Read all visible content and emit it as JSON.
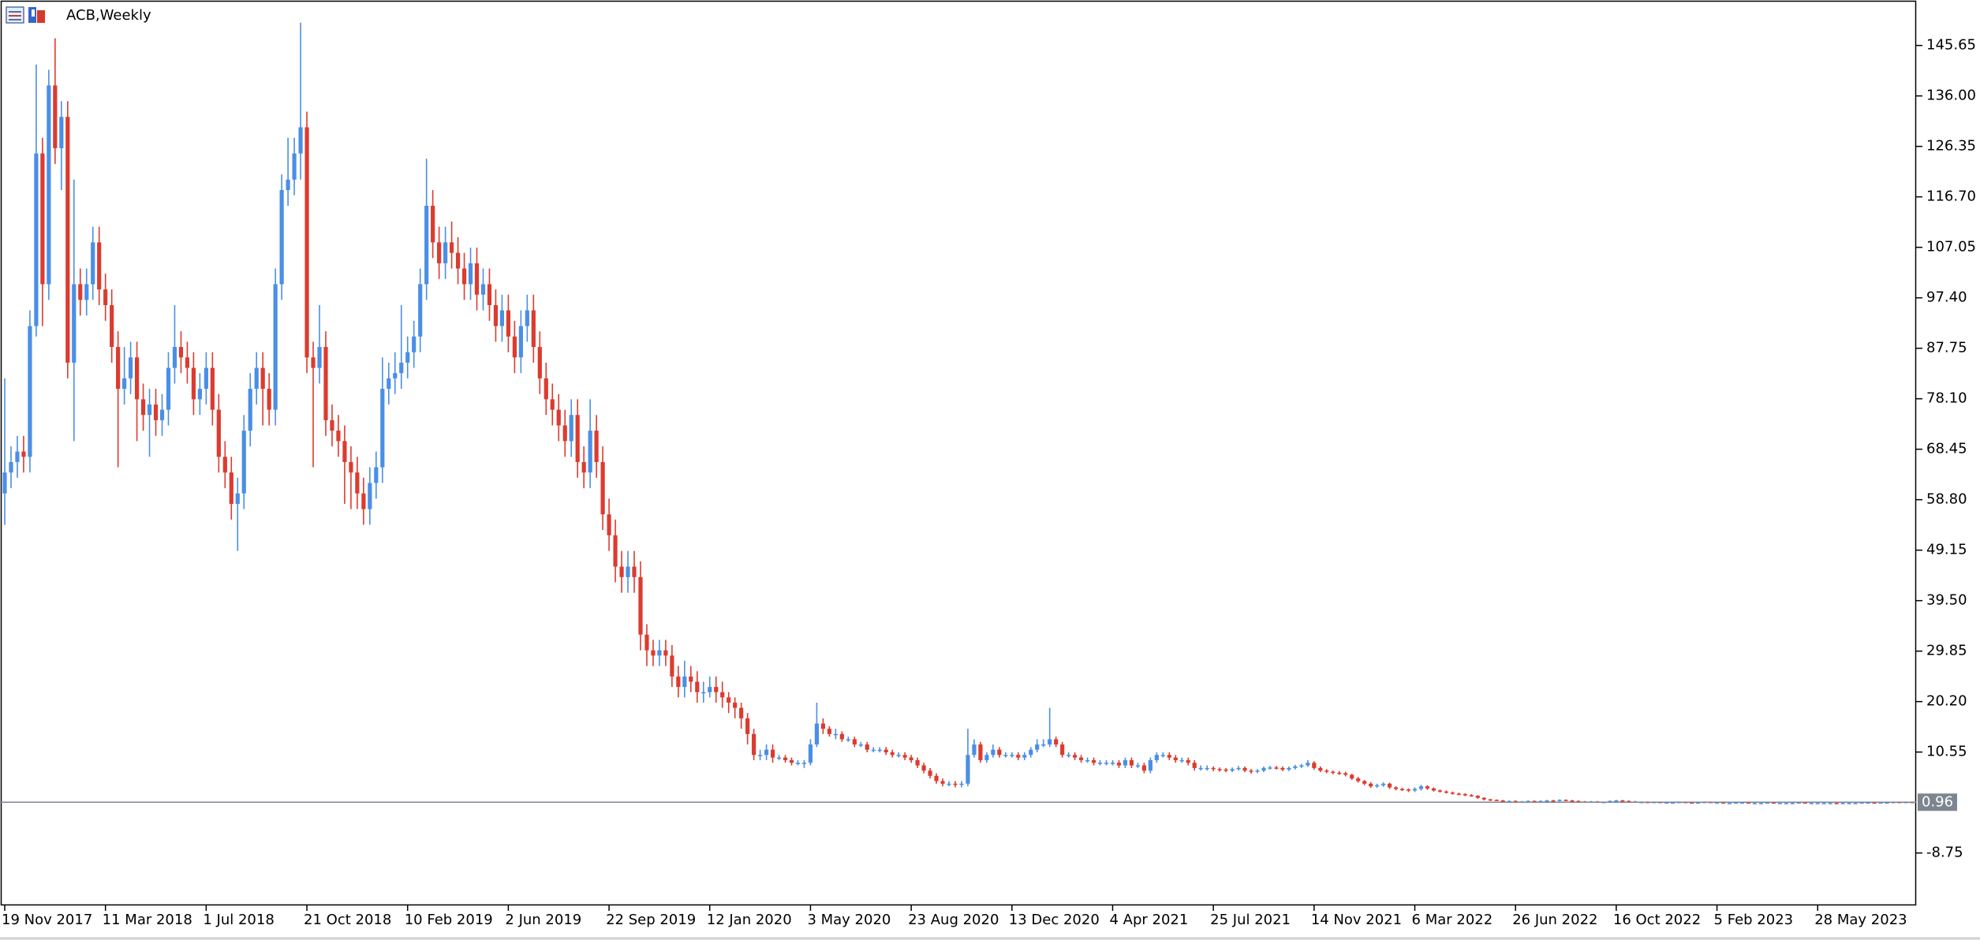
{
  "chart_data": {
    "type": "candlestick",
    "title": "ACB,Weekly",
    "up_color": "#4a8fe6",
    "down_color": "#dc3b2f",
    "grid": false,
    "last_price": 0.96,
    "last_price_color": "#7d8690",
    "ylim": [
      -18.6,
      154.34
    ],
    "yticks": [
      145.65,
      {
        "value": 136,
        "label": "136.00"
      },
      126.35,
      {
        "value": 116.7,
        "label": "116.70"
      },
      107.05,
      {
        "value": 97.4,
        "label": "97.40"
      },
      87.75,
      {
        "value": 78.1,
        "label": "78.10"
      },
      68.45,
      {
        "value": 58.8,
        "label": "58.80"
      },
      49.15,
      {
        "value": 39.5,
        "label": "39.50"
      },
      29.85,
      {
        "value": 20.2,
        "label": "20.20"
      },
      10.55,
      -8.75
    ],
    "categories": [
      "19 Nov 2017",
      null,
      null,
      null,
      null,
      null,
      null,
      null,
      null,
      null,
      null,
      null,
      null,
      null,
      null,
      null,
      "11 Mar 2018",
      null,
      null,
      null,
      null,
      null,
      null,
      null,
      null,
      null,
      null,
      null,
      null,
      null,
      null,
      null,
      "1 Jul 2018",
      null,
      null,
      null,
      null,
      null,
      null,
      null,
      null,
      null,
      null,
      null,
      null,
      null,
      null,
      null,
      "21 Oct 2018",
      null,
      null,
      null,
      null,
      null,
      null,
      null,
      null,
      null,
      null,
      null,
      null,
      null,
      null,
      null,
      "10 Feb 2019",
      null,
      null,
      null,
      null,
      null,
      null,
      null,
      null,
      null,
      null,
      null,
      null,
      null,
      null,
      null,
      "2 Jun 2019",
      null,
      null,
      null,
      null,
      null,
      null,
      null,
      null,
      null,
      null,
      null,
      null,
      null,
      null,
      null,
      "22 Sep 2019",
      null,
      null,
      null,
      null,
      null,
      null,
      null,
      null,
      null,
      null,
      null,
      null,
      null,
      null,
      null,
      "12 Jan 2020",
      null,
      null,
      null,
      null,
      null,
      null,
      null,
      null,
      null,
      null,
      null,
      null,
      null,
      null,
      null,
      "3 May 2020",
      null,
      null,
      null,
      null,
      null,
      null,
      null,
      null,
      null,
      null,
      null,
      null,
      null,
      null,
      null,
      "23 Aug 2020",
      null,
      null,
      null,
      null,
      null,
      null,
      null,
      null,
      null,
      null,
      null,
      null,
      null,
      null,
      null,
      "13 Dec 2020",
      null,
      null,
      null,
      null,
      null,
      null,
      null,
      null,
      null,
      null,
      null,
      null,
      null,
      null,
      null,
      "4 Apr 2021",
      null,
      null,
      null,
      null,
      null,
      null,
      null,
      null,
      null,
      null,
      null,
      null,
      null,
      null,
      null,
      "25 Jul 2021",
      null,
      null,
      null,
      null,
      null,
      null,
      null,
      null,
      null,
      null,
      null,
      null,
      null,
      null,
      null,
      "14 Nov 2021",
      null,
      null,
      null,
      null,
      null,
      null,
      null,
      null,
      null,
      null,
      null,
      null,
      null,
      null,
      null,
      "6 Mar 2022",
      null,
      null,
      null,
      null,
      null,
      null,
      null,
      null,
      null,
      null,
      null,
      null,
      null,
      null,
      null,
      "26 Jun 2022",
      null,
      null,
      null,
      null,
      null,
      null,
      null,
      null,
      null,
      null,
      null,
      null,
      null,
      null,
      null,
      "16 Oct 2022",
      null,
      null,
      null,
      null,
      null,
      null,
      null,
      null,
      null,
      null,
      null,
      null,
      null,
      null,
      null,
      "5 Feb 2023",
      null,
      null,
      null,
      null,
      null,
      null,
      null,
      null,
      null,
      null,
      null,
      null,
      null,
      null,
      null,
      "28 May 2023",
      null,
      null,
      null,
      null,
      null,
      null,
      null,
      null,
      null,
      null,
      null,
      null,
      null,
      null,
      null
    ],
    "open": [
      60,
      64,
      66,
      68,
      67,
      92,
      125,
      100,
      138,
      126,
      132,
      85,
      100,
      97,
      100,
      108,
      99,
      96,
      88,
      80,
      82,
      86,
      78,
      75,
      77,
      74,
      76,
      84,
      88,
      86,
      84,
      78,
      80,
      84,
      76,
      67,
      64,
      58,
      60,
      72,
      80,
      84,
      80,
      76,
      100,
      118,
      120,
      125,
      130,
      86,
      84,
      88,
      74,
      72,
      70,
      66,
      64,
      60,
      57,
      62,
      65,
      80,
      82,
      83,
      85,
      87,
      90,
      100,
      115,
      108,
      104,
      108,
      106,
      103,
      100,
      104,
      98,
      100,
      96,
      92,
      95,
      90,
      86,
      92,
      95,
      88,
      82,
      78,
      76,
      73,
      70,
      75,
      66,
      64,
      72,
      66,
      56,
      52,
      46,
      44,
      46,
      44,
      33,
      30,
      29,
      30,
      29,
      25,
      23,
      25,
      24,
      22,
      22,
      23,
      22,
      21,
      20,
      19,
      17,
      14,
      10,
      10,
      11,
      9.5,
      9.5,
      9,
      8.5,
      8.5,
      8.5,
      12,
      16,
      15,
      14,
      14,
      13,
      13,
      12,
      12,
      11,
      11,
      11,
      10.5,
      10,
      10,
      9.5,
      9,
      8,
      7,
      6,
      5,
      4.5,
      4.5,
      4.3,
      4.5,
      10,
      12,
      9,
      10,
      11,
      10,
      10,
      10,
      9.5,
      10,
      11,
      12,
      12,
      13,
      12,
      10,
      10,
      9.5,
      9,
      9,
      8.5,
      8.5,
      8.5,
      8.5,
      8,
      9,
      8,
      8,
      7,
      9,
      10,
      10,
      9.5,
      9,
      9,
      8.5,
      7.5,
      7.5,
      7.5,
      7.3,
      7.2,
      7,
      7.3,
      7.5,
      7,
      6.8,
      7,
      7.5,
      7.6,
      7.5,
      7.2,
      7.5,
      7.8,
      8,
      8.5,
      7.5,
      7,
      6.8,
      6.6,
      6.5,
      6.2,
      5.5,
      5,
      4.5,
      4,
      4.2,
      4.5,
      3.8,
      3.5,
      3.4,
      3.2,
      3.5,
      4,
      3.6,
      3.2,
      3,
      2.8,
      2.6,
      2.5,
      2.3,
      2.2,
      1.8,
      1.5,
      1.4,
      1.3,
      1.2,
      1.2,
      1.1,
      1.1,
      1.2,
      1.1,
      1.2,
      1.3,
      1.2,
      1.4,
      1.3,
      1.2,
      1.1,
      1.0,
      1.1,
      1.0,
      1.0,
      1.2,
      1.3,
      1.2,
      1.1,
      1.0,
      1.0,
      0.9,
      1.0,
      0.9,
      0.9,
      0.9,
      1.0,
      0.9,
      0.8,
      0.9,
      1.0,
      0.9,
      0.9,
      0.8,
      0.8,
      0.9,
      0.9,
      0.8,
      0.8,
      0.8,
      0.9,
      0.8,
      0.8,
      0.8,
      0.8,
      0.9,
      0.8,
      0.8,
      0.8,
      0.8,
      0.8,
      0.7,
      0.8,
      0.8,
      0.8,
      0.9,
      0.9,
      0.8,
      0.9,
      0.9,
      1.0,
      0.9,
      1.0
    ],
    "high": [
      82,
      69,
      71,
      71,
      95,
      142,
      128,
      141,
      147,
      135,
      135,
      120,
      103,
      103,
      111,
      111,
      102,
      99,
      91,
      88,
      89,
      89,
      81,
      80,
      80,
      79,
      87,
      96,
      91,
      89,
      87,
      83,
      87,
      87,
      79,
      70,
      67,
      63,
      75,
      83,
      87,
      87,
      83,
      103,
      121,
      128,
      128,
      150,
      133,
      89,
      96,
      91,
      77,
      75,
      73,
      69,
      67,
      63,
      65,
      68,
      86,
      85,
      87,
      96,
      90,
      93,
      103,
      124,
      118,
      111,
      111,
      112,
      109,
      106,
      107,
      107,
      103,
      103,
      99,
      98,
      98,
      93,
      95,
      98,
      98,
      91,
      85,
      81,
      79,
      76,
      78,
      78,
      69,
      78,
      75,
      69,
      59,
      55,
      49,
      49,
      49,
      47,
      35,
      32,
      32,
      32,
      31,
      27,
      28,
      27,
      26,
      24,
      25,
      25,
      24,
      22,
      21,
      20,
      18,
      15,
      11,
      12,
      12,
      10,
      10,
      9.5,
      9,
      9,
      13,
      20,
      17,
      15.5,
      15,
      14.5,
      13.5,
      13.5,
      12.5,
      12.5,
      11.5,
      11.5,
      11.5,
      11,
      10.5,
      10.5,
      10,
      9.5,
      8.5,
      7.5,
      6.5,
      5.5,
      5,
      5,
      5,
      15,
      13,
      12.5,
      10.5,
      12,
      11.5,
      10.5,
      10.5,
      10.5,
      10.5,
      11.5,
      13,
      13,
      19,
      13.5,
      12.5,
      10.5,
      10.5,
      10,
      9.5,
      9.5,
      9,
      9,
      9,
      9,
      9.5,
      9.5,
      8.5,
      8.5,
      9.5,
      10.5,
      10.5,
      10.5,
      10,
      9.5,
      9.5,
      9,
      8,
      8,
      7.8,
      7.6,
      7.5,
      7.6,
      7.9,
      7.8,
      7.3,
      7.3,
      7.8,
      7.9,
      7.9,
      7.8,
      7.8,
      8.1,
      8.3,
      9,
      8.8,
      7.8,
      7.3,
      7,
      6.9,
      6.8,
      6.4,
      5.8,
      5.2,
      4.8,
      4.5,
      4.8,
      4.7,
      4,
      3.7,
      3.6,
      3.8,
      4.3,
      4.2,
      3.8,
      3.4,
      3.2,
      3,
      2.8,
      2.7,
      2.5,
      2.3,
      1.9,
      1.6,
      1.5,
      1.4,
      1.3,
      1.3,
      1.2,
      1.3,
      1.3,
      1.3,
      1.4,
      1.4,
      1.5,
      1.5,
      1.4,
      1.3,
      1.2,
      1.2,
      1.2,
      1.1,
      1.3,
      1.4,
      1.4,
      1.3,
      1.2,
      1.1,
      1.1,
      1.1,
      1.1,
      1.0,
      1.0,
      1.1,
      1.1,
      1.0,
      1.0,
      1.1,
      1.1,
      1.0,
      1.0,
      0.9,
      1.0,
      1.0,
      1.0,
      0.9,
      0.9,
      1.0,
      1.0,
      0.9,
      0.9,
      0.9,
      1.0,
      1.0,
      0.9,
      0.9,
      0.9,
      0.9,
      0.9,
      0.9,
      0.9,
      0.9,
      1.0,
      1.0,
      1.0,
      1.0,
      1.0,
      1.1,
      1.1,
      1.1,
      1.1
    ],
    "low": [
      54,
      61,
      63,
      64,
      64,
      90,
      92,
      97,
      123,
      118,
      82,
      70,
      94,
      94,
      97,
      96,
      93,
      85,
      65,
      77,
      79,
      70,
      72,
      67,
      71,
      71,
      73,
      81,
      83,
      81,
      75,
      75,
      77,
      73,
      64,
      61,
      55,
      49,
      57,
      69,
      77,
      73,
      73,
      73,
      97,
      115,
      117,
      120,
      83,
      65,
      81,
      71,
      69,
      67,
      58,
      57,
      57,
      54,
      54,
      59,
      62,
      77,
      79,
      80,
      82,
      84,
      87,
      97,
      105,
      101,
      101,
      103,
      100,
      97,
      97,
      95,
      95,
      93,
      89,
      89,
      87,
      83,
      83,
      89,
      85,
      79,
      75,
      73,
      70,
      67,
      67,
      63,
      61,
      61,
      63,
      53,
      49,
      43,
      41,
      41,
      41,
      30,
      27,
      27,
      27,
      27,
      23,
      21,
      21,
      22,
      20,
      20,
      21,
      20,
      19,
      18,
      17,
      15,
      12,
      9,
      9,
      9,
      8.5,
      9,
      8.5,
      8,
      8,
      7.5,
      8,
      11.5,
      14,
      13.5,
      13,
      12.5,
      12.5,
      11.5,
      11.5,
      10.5,
      10.5,
      10.5,
      10,
      9.5,
      9.5,
      9,
      8.5,
      7.5,
      6.5,
      5.5,
      4.5,
      4,
      4,
      3.8,
      3.8,
      4,
      9.5,
      8.5,
      8.5,
      9.5,
      9.5,
      9.5,
      9.5,
      9,
      9,
      9.5,
      10.5,
      11.5,
      11.5,
      11.5,
      9.5,
      9.5,
      9,
      8.5,
      8.5,
      8,
      8,
      8,
      8,
      7.5,
      7.5,
      7.5,
      7.5,
      6.5,
      6.5,
      8.5,
      9.5,
      9,
      8.5,
      8.5,
      8,
      7,
      7,
      7,
      6.9,
      6.8,
      6.7,
      6.7,
      7,
      6.7,
      6.4,
      6.5,
      6.7,
      7.2,
      7.2,
      6.9,
      6.9,
      7.2,
      7.5,
      7.7,
      7.2,
      6.7,
      6.5,
      6.3,
      6.2,
      5.9,
      5.2,
      4.7,
      4.2,
      3.7,
      3.7,
      3.9,
      3.5,
      3.2,
      3.1,
      2.9,
      2.9,
      3.2,
      3.3,
      3,
      2.8,
      2.6,
      2.4,
      2.3,
      2.1,
      2,
      1.6,
      1.3,
      1.2,
      1.2,
      1.1,
      1.1,
      1.0,
      1.0,
      1.0,
      1.0,
      1.0,
      1.1,
      1.1,
      1.1,
      1.2,
      1.1,
      1.0,
      0.9,
      0.9,
      0.9,
      0.9,
      0.9,
      1.1,
      1.1,
      1.0,
      0.9,
      0.9,
      0.8,
      0.8,
      0.8,
      0.8,
      0.8,
      0.8,
      0.8,
      0.7,
      0.7,
      0.8,
      0.8,
      0.8,
      0.7,
      0.7,
      0.7,
      0.8,
      0.7,
      0.7,
      0.7,
      0.7,
      0.7,
      0.7,
      0.7,
      0.7,
      0.7,
      0.7,
      0.7,
      0.7,
      0.7,
      0.7,
      0.6,
      0.6,
      0.7,
      0.7,
      0.7,
      0.8,
      0.7,
      0.7,
      0.8,
      0.8,
      0.8,
      0.8,
      0.9
    ],
    "close": [
      64,
      66,
      68,
      67,
      92,
      125,
      100,
      138,
      126,
      132,
      85,
      100,
      97,
      100,
      108,
      99,
      96,
      88,
      80,
      82,
      86,
      78,
      75,
      77,
      74,
      76,
      84,
      88,
      86,
      84,
      78,
      80,
      84,
      76,
      67,
      64,
      58,
      60,
      72,
      80,
      84,
      80,
      76,
      100,
      118,
      120,
      125,
      130,
      86,
      84,
      88,
      74,
      72,
      70,
      66,
      64,
      60,
      57,
      62,
      65,
      80,
      82,
      83,
      85,
      87,
      90,
      100,
      115,
      108,
      104,
      108,
      106,
      103,
      100,
      104,
      98,
      100,
      96,
      92,
      95,
      90,
      86,
      92,
      95,
      88,
      82,
      78,
      76,
      73,
      70,
      75,
      66,
      64,
      72,
      66,
      56,
      52,
      46,
      44,
      46,
      44,
      33,
      30,
      29,
      30,
      29,
      25,
      23,
      25,
      24,
      22,
      22,
      23,
      22,
      21,
      20,
      19,
      17,
      14,
      10,
      10,
      11,
      9.5,
      9.5,
      9,
      8.5,
      8.5,
      8.5,
      12,
      16,
      15,
      14,
      14,
      13,
      13,
      12,
      12,
      11,
      11,
      11,
      10.5,
      10,
      10,
      9.5,
      9,
      8,
      7,
      6,
      5,
      4.5,
      4.5,
      4.3,
      4.5,
      10,
      12,
      9,
      10,
      11,
      10,
      10,
      10,
      9.5,
      10,
      11,
      12,
      12,
      13,
      12,
      10,
      10,
      9.5,
      9,
      9,
      8.5,
      8.5,
      8.5,
      8.5,
      8,
      9,
      8,
      8,
      7,
      9,
      10,
      10,
      9.5,
      9,
      9,
      8.5,
      7.5,
      7.5,
      7.5,
      7.3,
      7.2,
      7,
      7.3,
      7.5,
      7,
      6.8,
      7,
      7.5,
      7.6,
      7.5,
      7.2,
      7.5,
      7.8,
      8,
      8.5,
      7.5,
      7,
      6.8,
      6.6,
      6.5,
      6.2,
      5.5,
      5,
      4.5,
      4,
      4.2,
      4.5,
      3.8,
      3.5,
      3.4,
      3.2,
      3.5,
      4,
      3.6,
      3.2,
      3,
      2.8,
      2.6,
      2.5,
      2.3,
      2.2,
      1.8,
      1.5,
      1.4,
      1.3,
      1.2,
      1.2,
      1.1,
      1.1,
      1.2,
      1.1,
      1.2,
      1.3,
      1.2,
      1.4,
      1.3,
      1.2,
      1.1,
      1.0,
      1.1,
      1.0,
      1.0,
      1.2,
      1.3,
      1.2,
      1.1,
      1.0,
      1.0,
      0.9,
      1.0,
      0.9,
      0.9,
      0.9,
      1.0,
      0.9,
      0.8,
      0.9,
      1.0,
      0.9,
      0.9,
      0.8,
      0.8,
      0.9,
      0.9,
      0.8,
      0.8,
      0.8,
      0.9,
      0.8,
      0.8,
      0.8,
      0.8,
      0.9,
      0.8,
      0.8,
      0.8,
      0.8,
      0.8,
      0.7,
      0.8,
      0.8,
      0.8,
      0.9,
      0.9,
      0.8,
      0.9,
      0.9,
      1.0,
      0.9,
      1.0,
      0.96
    ]
  }
}
